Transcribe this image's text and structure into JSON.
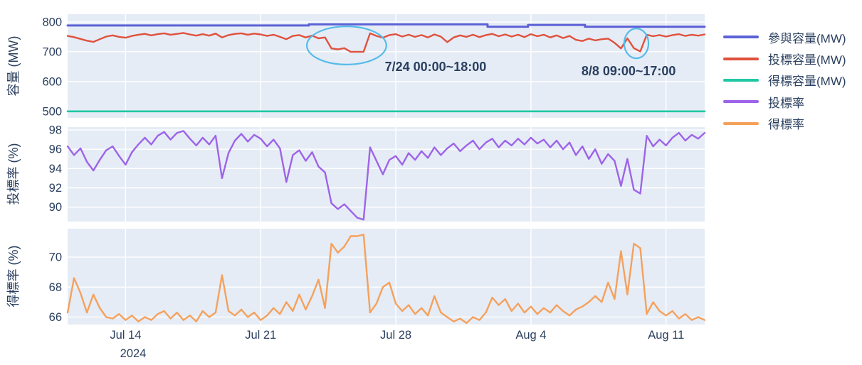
{
  "figure": {
    "background": "#ffffff",
    "plot_bg": "#E5ECF6",
    "grid_color": "#ffffff",
    "text_color": "#2A3F5F",
    "annotation_color": "#56BBE8"
  },
  "x_axis": {
    "domain_days": [
      0,
      33
    ],
    "tick_days": [
      3,
      10,
      17,
      24,
      31
    ],
    "tick_labels": [
      "Jul 14",
      "Jul 21",
      "Jul 28",
      "Aug 4",
      "Aug 11"
    ],
    "year_label": "2024"
  },
  "panels": [
    {
      "title": "容量 (MW)",
      "ticks": [
        800,
        700,
        600,
        500
      ],
      "range": [
        478,
        826
      ]
    },
    {
      "title": "投標率 (%)",
      "ticks": [
        98,
        96,
        94,
        92,
        90
      ],
      "range": [
        88.5,
        98.3
      ]
    },
    {
      "title": "得標率 (%)",
      "ticks": [
        70,
        68,
        66
      ],
      "range": [
        65.5,
        71.9
      ]
    }
  ],
  "legend": {
    "items": [
      {
        "label": "參與容量(MW)",
        "color": "#5C62D6"
      },
      {
        "label": "投標容量(MW)",
        "color": "#E0513C"
      },
      {
        "label": "得標容量(MW)",
        "color": "#1FC8A2"
      },
      {
        "label": "投標率",
        "color": "#9D63E8"
      },
      {
        "label": "得標率",
        "color": "#F5A15C"
      }
    ]
  },
  "annotations": [
    {
      "text": "7/24 00:00~18:00",
      "x_day": 19.06,
      "y_mw": 635,
      "ellipse": {
        "cx_day": 14.45,
        "cy_mw": 721,
        "rx_days": 2.06,
        "ry_mw": 64
      }
    },
    {
      "text": "8/8 09:00~17:00",
      "x_day": 29.06,
      "y_mw": 621,
      "ellipse": {
        "cx_day": 29.46,
        "cy_mw": 728,
        "rx_days": 0.63,
        "ry_mw": 50
      }
    }
  ],
  "chart_data": {
    "type": "line",
    "x_unit": "days since 2024-07-11 (hourly time series)",
    "series": [
      {
        "name": "參與容量(MW)",
        "panel": 0,
        "color": "#5C62D6",
        "width": 3,
        "x": [
          0,
          12.5,
          12.5,
          21.75,
          21.75,
          23.85,
          23.85,
          26.8,
          26.8,
          33
        ],
        "y": [
          782,
          782,
          786,
          786,
          778,
          778,
          784,
          784,
          778,
          778
        ],
        "y_render": [
          788,
          788,
          792,
          792,
          784,
          784,
          790,
          790,
          784,
          784
        ]
      },
      {
        "name": "投標容量(MW)",
        "panel": 0,
        "color": "#E0513C",
        "width": 2.4,
        "x_step": 0.3333,
        "y": [
          753,
          749,
          743,
          737,
          733,
          742,
          751,
          755,
          750,
          747,
          753,
          757,
          760,
          755,
          759,
          762,
          757,
          760,
          763,
          758,
          754,
          759,
          754,
          761,
          748,
          756,
          760,
          762,
          757,
          761,
          758,
          753,
          757,
          750,
          742,
          753,
          756,
          748,
          754,
          745,
          748,
          711,
          708,
          712,
          700,
          700,
          700,
          762,
          753,
          747,
          756,
          759,
          751,
          757,
          750,
          756,
          748,
          758,
          751,
          732,
          748,
          755,
          750,
          757,
          749,
          756,
          760,
          752,
          758,
          751,
          757,
          749,
          759,
          752,
          757,
          748,
          755,
          746,
          753,
          740,
          736,
          744,
          738,
          742,
          744,
          730,
          711,
          745,
          712,
          701,
          757,
          752,
          756,
          751,
          756,
          759,
          753,
          757,
          754,
          758
        ]
      },
      {
        "name": "得標容量(MW)",
        "panel": 0,
        "color": "#1FC8A2",
        "width": 2.6,
        "x": [
          0,
          33
        ],
        "y": [
          500,
          500
        ]
      },
      {
        "name": "投標率",
        "panel": 1,
        "color": "#9D63E8",
        "width": 2.4,
        "x_step": 0.3333,
        "y": [
          96.3,
          95.4,
          96.1,
          94.7,
          93.8,
          94.9,
          95.9,
          96.3,
          95.3,
          94.4,
          95.7,
          96.5,
          97.2,
          96.5,
          97.4,
          97.8,
          97.0,
          97.7,
          97.9,
          97.1,
          96.4,
          97.2,
          96.5,
          97.4,
          93.0,
          95.6,
          96.9,
          97.6,
          96.8,
          97.5,
          97.1,
          96.3,
          97.0,
          96.1,
          92.6,
          95.4,
          95.9,
          94.8,
          95.7,
          94.2,
          93.6,
          90.4,
          89.8,
          90.3,
          89.6,
          88.9,
          88.7,
          96.2,
          94.8,
          93.4,
          94.9,
          95.3,
          94.4,
          95.6,
          94.9,
          95.8,
          95.1,
          96.2,
          95.4,
          96.1,
          96.6,
          95.8,
          96.4,
          96.9,
          96.0,
          96.7,
          97.1,
          96.2,
          96.9,
          96.4,
          97.1,
          96.5,
          97.2,
          96.6,
          97.0,
          96.2,
          96.9,
          96.0,
          96.7,
          95.4,
          96.3,
          95.0,
          96.0,
          94.5,
          95.5,
          94.8,
          92.2,
          95.0,
          91.8,
          91.4,
          97.4,
          96.3,
          97.0,
          96.4,
          97.2,
          97.7,
          96.9,
          97.5,
          97.1,
          97.7
        ]
      },
      {
        "name": "得標率",
        "panel": 2,
        "color": "#F5A15C",
        "width": 2.4,
        "x_step": 0.3333,
        "y": [
          66.3,
          68.6,
          67.6,
          66.3,
          67.5,
          66.6,
          66.0,
          65.9,
          66.2,
          65.8,
          66.1,
          65.7,
          66.0,
          65.8,
          66.2,
          66.4,
          65.9,
          66.3,
          65.8,
          66.1,
          65.7,
          66.4,
          66.0,
          66.3,
          68.8,
          66.4,
          66.1,
          66.5,
          66.0,
          66.3,
          65.8,
          66.1,
          66.6,
          66.2,
          67.0,
          66.4,
          67.5,
          66.5,
          67.4,
          68.5,
          66.6,
          70.9,
          70.3,
          70.7,
          71.4,
          71.4,
          71.5,
          66.3,
          66.9,
          68.0,
          68.3,
          66.9,
          66.4,
          66.8,
          66.2,
          66.6,
          66.1,
          67.4,
          66.3,
          66.0,
          65.7,
          65.9,
          65.6,
          66.0,
          65.8,
          66.3,
          67.3,
          66.8,
          67.2,
          66.4,
          66.9,
          66.3,
          66.7,
          66.2,
          66.6,
          66.3,
          66.8,
          66.4,
          66.1,
          66.5,
          66.7,
          67.0,
          67.4,
          67.0,
          68.3,
          67.2,
          70.4,
          67.5,
          70.9,
          70.6,
          66.2,
          67.0,
          66.4,
          66.1,
          66.4,
          65.9,
          66.2,
          65.8,
          66.0,
          65.8
        ]
      }
    ]
  }
}
